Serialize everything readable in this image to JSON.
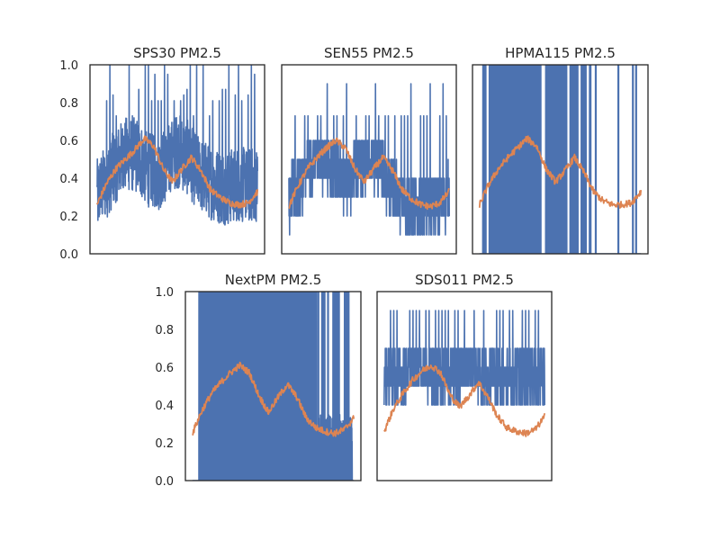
{
  "figure": {
    "background": "#ffffff",
    "axis_color": "#262626"
  },
  "chart_data": [
    {
      "type": "line",
      "title": "SPS30 PM2.5",
      "xlabel": "",
      "ylabel": "",
      "ylim": [
        0,
        1
      ],
      "yticks": [
        "0.0",
        "0.2",
        "0.4",
        "0.6",
        "0.8",
        "1.0"
      ],
      "show_yticks": true,
      "grid": false,
      "series": [
        {
          "color": "#4c72b0",
          "style": "noisy sensor signal",
          "baseline": [
            0.27,
            0.36,
            0.45,
            0.5,
            0.49,
            0.42,
            0.39,
            0.45,
            0.52,
            0.48,
            0.4,
            0.36,
            0.33,
            0.32,
            0.34,
            0.33,
            0.34
          ],
          "band": [
            -0.17,
            0.23
          ],
          "spikes": [
            0.81,
            1.0,
            1.0,
            0.95,
            1.0,
            1.0,
            0.87,
            0.84,
            0.73
          ]
        },
        {
          "color": "#dd8452",
          "style": "smoothed trend",
          "values": [
            0.26,
            0.37,
            0.45,
            0.5,
            0.55,
            0.61,
            0.57,
            0.45,
            0.38,
            0.45,
            0.51,
            0.44,
            0.34,
            0.3,
            0.27,
            0.26,
            0.27,
            0.33
          ]
        }
      ]
    },
    {
      "type": "line",
      "title": "SEN55 PM2.5",
      "xlabel": "",
      "ylabel": "",
      "ylim": [
        0,
        1
      ],
      "show_yticks": false,
      "grid": false,
      "series": [
        {
          "color": "#4c72b0",
          "style": "quantised sensor signal",
          "baseline": [
            0.25,
            0.33,
            0.42,
            0.48,
            0.45,
            0.38,
            0.36,
            0.44,
            0.49,
            0.44,
            0.34,
            0.27,
            0.23,
            0.22,
            0.24,
            0.25,
            0.28
          ],
          "band": [
            -0.13,
            0.18
          ],
          "spikes": [
            0.73,
            0.73,
            0.73,
            0.9
          ]
        },
        {
          "color": "#dd8452",
          "style": "smoothed trend",
          "values": [
            0.25,
            0.36,
            0.45,
            0.51,
            0.56,
            0.6,
            0.56,
            0.45,
            0.38,
            0.45,
            0.51,
            0.44,
            0.34,
            0.29,
            0.26,
            0.25,
            0.27,
            0.33
          ]
        }
      ]
    },
    {
      "type": "line",
      "title": "HPMA115 PM2.5",
      "xlabel": "",
      "ylabel": "",
      "ylim": [
        0,
        1
      ],
      "show_yticks": false,
      "grid": false,
      "series": [
        {
          "color": "#4c72b0",
          "style": "binary full-range switching",
          "full_band_ranges": [
            [
              0.02,
              0.04
            ],
            [
              0.06,
              0.38
            ],
            [
              0.41,
              0.54
            ],
            [
              0.56,
              0.61
            ],
            [
              0.63,
              0.66
            ],
            [
              0.68,
              0.69
            ]
          ],
          "full_band_lines": [
            0.72,
            0.86,
            0.95,
            0.97
          ]
        },
        {
          "color": "#dd8452",
          "style": "smoothed trend",
          "values": [
            0.26,
            0.37,
            0.45,
            0.51,
            0.56,
            0.61,
            0.57,
            0.45,
            0.38,
            0.44,
            0.51,
            0.43,
            0.33,
            0.28,
            0.26,
            0.26,
            0.27,
            0.33
          ]
        }
      ]
    },
    {
      "type": "line",
      "title": "NextPM PM2.5",
      "xlabel": "",
      "ylabel": "",
      "ylim": [
        0,
        1
      ],
      "yticks": [
        "0.0",
        "0.2",
        "0.4",
        "0.6",
        "0.8",
        "1.0"
      ],
      "show_yticks": true,
      "grid": false,
      "series": [
        {
          "color": "#4c72b0",
          "style": "binary full-range switching",
          "full_band_ranges": [
            [
              0.04,
              0.77
            ],
            [
              0.8,
              0.82
            ],
            [
              0.87,
              0.91
            ],
            [
              0.94,
              0.97
            ]
          ],
          "full_band_lines": [
            0.06,
            0.78,
            0.84
          ],
          "low_ranges": [
            [
              0.77,
              0.99
            ]
          ]
        },
        {
          "color": "#dd8452",
          "style": "smoothed trend",
          "values": [
            0.25,
            0.37,
            0.46,
            0.52,
            0.57,
            0.61,
            0.57,
            0.45,
            0.36,
            0.44,
            0.51,
            0.44,
            0.33,
            0.28,
            0.26,
            0.25,
            0.27,
            0.33
          ]
        }
      ]
    },
    {
      "type": "line",
      "title": "SDS011 PM2.5",
      "xlabel": "",
      "ylabel": "",
      "ylim": [
        0,
        1
      ],
      "show_yticks": false,
      "grid": false,
      "series": [
        {
          "color": "#4c72b0",
          "style": "quantised sensor signal",
          "baseline": [
            0.5,
            0.5,
            0.5,
            0.55,
            0.55,
            0.5,
            0.5,
            0.5,
            0.55,
            0.55,
            0.5,
            0.5,
            0.5,
            0.5,
            0.5,
            0.5,
            0.5
          ],
          "band": [
            -0.1,
            0.2
          ],
          "spikes": [
            0.9,
            0.9,
            0.9,
            0.9,
            0.9,
            0.9
          ]
        },
        {
          "color": "#dd8452",
          "style": "smoothed trend",
          "values": [
            0.26,
            0.38,
            0.46,
            0.53,
            0.58,
            0.61,
            0.57,
            0.45,
            0.39,
            0.45,
            0.52,
            0.44,
            0.34,
            0.28,
            0.26,
            0.25,
            0.27,
            0.34
          ]
        }
      ]
    }
  ]
}
